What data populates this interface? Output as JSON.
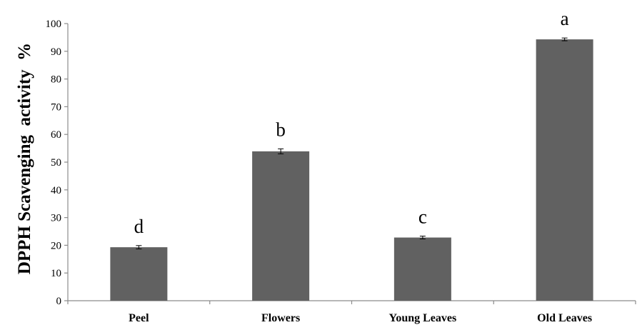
{
  "chart_data": {
    "type": "bar",
    "title": "",
    "xlabel": "",
    "ylabel": "DPPH Scavenging  activity  %",
    "categories": [
      "Peel",
      "Flowers",
      "Young Leaves",
      "Old Leaves"
    ],
    "values": [
      19.3,
      53.9,
      22.8,
      94.3
    ],
    "errors": [
      0.6,
      0.9,
      0.5,
      0.5
    ],
    "significance_letters": [
      "d",
      "b",
      "c",
      "a"
    ],
    "ylim": [
      0,
      100
    ],
    "yticks": [
      0,
      10,
      20,
      30,
      40,
      50,
      60,
      70,
      80,
      90,
      100
    ],
    "grid": false,
    "legend": "none",
    "bar_color": "#616161",
    "axis_color": "#8c8c8c"
  }
}
